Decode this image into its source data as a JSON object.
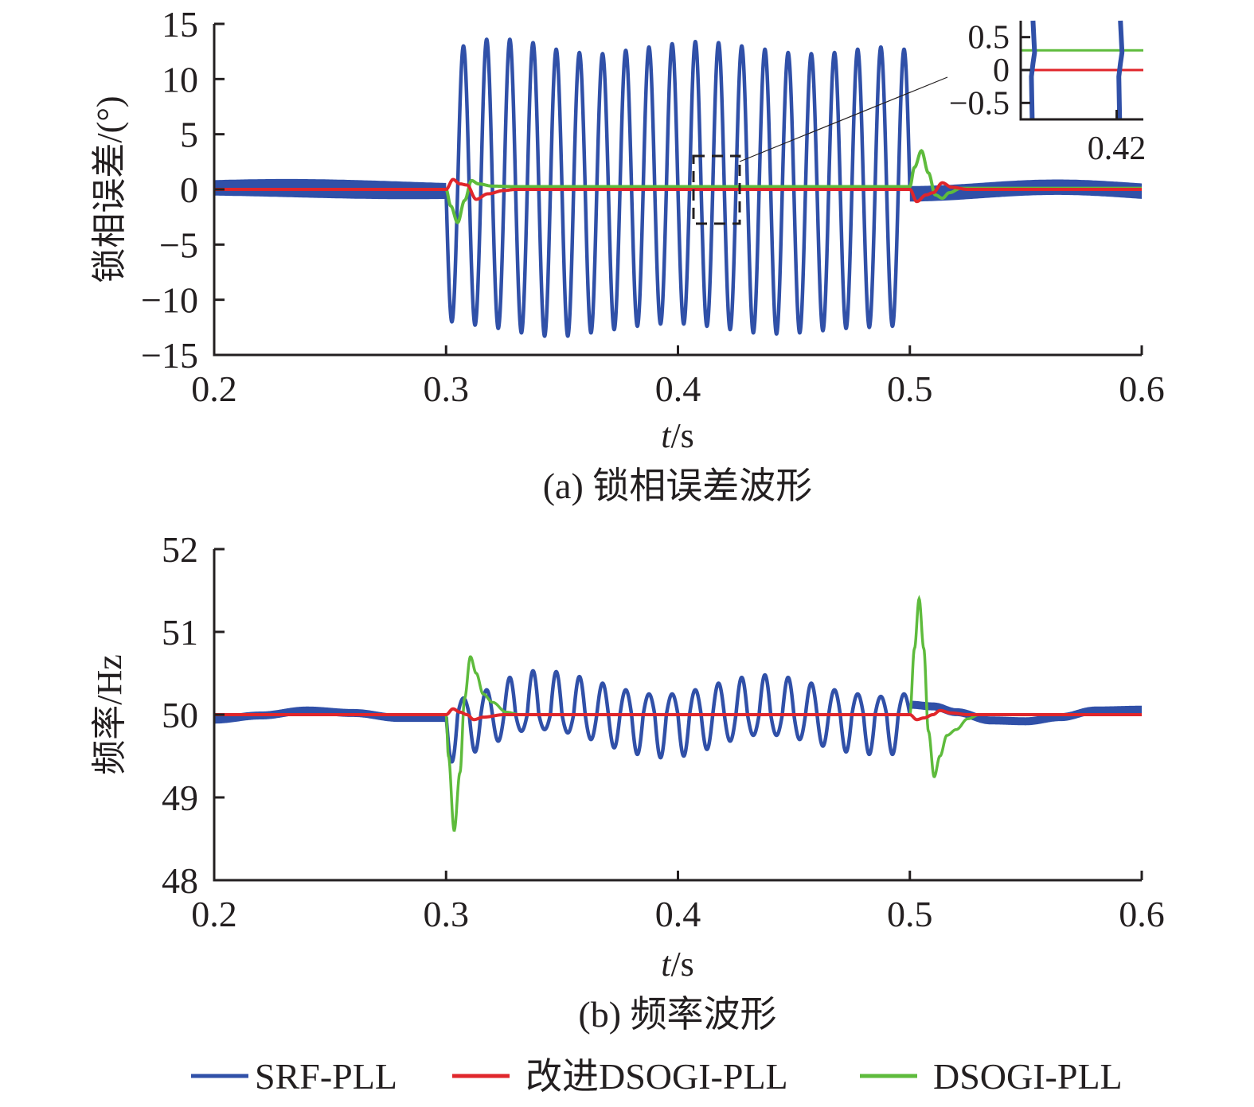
{
  "chart_data": [
    {
      "id": "a",
      "type": "line",
      "caption": "(a) 锁相误差波形",
      "xlabel_italic": "t",
      "xlabel_unit": "/s",
      "ylabel": "锁相误差/(°)",
      "xlim": [
        0.2,
        0.6
      ],
      "ylim": [
        -15,
        15
      ],
      "xticks": [
        0.2,
        0.3,
        0.4,
        0.5,
        0.6
      ],
      "xtick_labels": [
        "0.2",
        "0.3",
        "0.4",
        "0.5",
        "0.6"
      ],
      "yticks": [
        -15,
        -10,
        -5,
        0,
        5,
        10,
        15
      ],
      "ytick_labels": [
        "−15",
        "−10",
        "−5",
        "0",
        "5",
        "10",
        "15"
      ],
      "grid": false,
      "series": [
        {
          "name": "SRF-PLL",
          "color": "#3050a8",
          "description": "Before 0.3 s and after 0.5 s: thick band ±0.7° with slow ~25 Hz modulation; 0.3–0.5 s: 100 Hz oscillation, amplitude ≈13°",
          "pre_band_halfwidth": 0.7,
          "oscillation_freq_hz": 100,
          "oscillation_start": 0.3,
          "oscillation_end": 0.5,
          "oscillation_peaks": [
            13.0,
            13.6,
            13.6,
            13.3,
            12.7,
            12.4,
            12.3,
            12.6,
            12.9,
            13.2,
            13.4,
            13.3,
            13.0,
            12.7,
            12.4,
            12.3,
            12.4,
            12.7,
            12.9,
            12.7
          ],
          "oscillation_troughs": [
            -12.0,
            -12.3,
            -12.6,
            -13.0,
            -13.3,
            -13.3,
            -13.0,
            -12.7,
            -12.4,
            -12.2,
            -12.2,
            -12.4,
            -12.7,
            -13.0,
            -13.1,
            -13.0,
            -12.8,
            -12.6,
            -12.5,
            -12.4
          ]
        },
        {
          "name": "改进DSOGI-PLL",
          "color": "#e0262b",
          "description": "≈0 everywhere; small transients at 0.3 s and 0.5 s",
          "transient_points": [
            [
              0.3,
              0.0
            ],
            [
              0.303,
              0.9
            ],
            [
              0.306,
              0.5
            ],
            [
              0.309,
              0.4
            ],
            [
              0.313,
              -0.9
            ],
            [
              0.318,
              -0.4
            ],
            [
              0.325,
              -0.1
            ],
            [
              0.33,
              0.0
            ],
            [
              0.5,
              0.0
            ],
            [
              0.503,
              -1.1
            ],
            [
              0.507,
              -0.5
            ],
            [
              0.51,
              -0.3
            ],
            [
              0.514,
              0.6
            ],
            [
              0.518,
              0.2
            ],
            [
              0.525,
              0.0
            ]
          ]
        },
        {
          "name": "DSOGI-PLL",
          "color": "#5ebb3c",
          "description": "≈0.3° steady state; transients −3° at 0.3 s and +3.5° at 0.5 s",
          "steady_value": 0.25,
          "transient_points": [
            [
              0.3,
              0.0
            ],
            [
              0.302,
              -1.5
            ],
            [
              0.305,
              -3.0
            ],
            [
              0.308,
              -1.0
            ],
            [
              0.311,
              0.8
            ],
            [
              0.314,
              0.5
            ],
            [
              0.32,
              0.3
            ],
            [
              0.33,
              0.25
            ],
            [
              0.5,
              0.25
            ],
            [
              0.502,
              2.0
            ],
            [
              0.505,
              3.5
            ],
            [
              0.508,
              1.5
            ],
            [
              0.511,
              -0.5
            ],
            [
              0.514,
              -0.8
            ],
            [
              0.517,
              -0.3
            ],
            [
              0.522,
              0.1
            ],
            [
              0.53,
              0.1
            ]
          ]
        }
      ],
      "inset": {
        "xlim": [
          0.411,
          0.4225
        ],
        "ylim": [
          -0.75,
          0.75
        ],
        "xticks": [
          0.42
        ],
        "xtick_labels": [
          "0.42"
        ],
        "yticks": [
          -0.5,
          0,
          0.5
        ],
        "ytick_labels": [
          "−0.5",
          "0",
          "0.5"
        ],
        "series_values": {
          "DSOGI-PLL": 0.3,
          "改进DSOGI-PLL": 0.0,
          "SRF-PLL_crossings_t": [
            0.4123,
            0.4205
          ]
        },
        "zoom_box_x": [
          0.41,
          0.42
        ],
        "zoom_box_y": [
          -3.2,
          3.0
        ]
      }
    },
    {
      "id": "b",
      "type": "line",
      "caption": "(b) 频率波形",
      "xlabel_italic": "t",
      "xlabel_unit": "/s",
      "ylabel": "频率/Hz",
      "xlim": [
        0.2,
        0.6
      ],
      "ylim": [
        48,
        52
      ],
      "xticks": [
        0.2,
        0.3,
        0.4,
        0.5,
        0.6
      ],
      "xtick_labels": [
        "0.2",
        "0.3",
        "0.4",
        "0.5",
        "0.6"
      ],
      "yticks": [
        48,
        49,
        50,
        51,
        52
      ],
      "ytick_labels": [
        "48",
        "49",
        "50",
        "51",
        "52"
      ],
      "grid": false,
      "series": [
        {
          "name": "SRF-PLL",
          "color": "#3050a8",
          "description": "≈50 Hz with slow ±0.07 Hz drift outside 0.3–0.5 s; 100 Hz oscillation of ±0.3–0.5 Hz inside",
          "oscillation_peaks": [
            50.2,
            50.3,
            50.45,
            50.53,
            50.52,
            50.46,
            50.38,
            50.3,
            50.25,
            50.25,
            50.3,
            50.38,
            50.45,
            50.48,
            50.45,
            50.38,
            50.3,
            50.25,
            50.22,
            50.25
          ],
          "oscillation_troughs": [
            49.43,
            49.55,
            49.68,
            49.8,
            49.82,
            49.78,
            49.7,
            49.6,
            49.52,
            49.48,
            49.5,
            49.58,
            49.68,
            49.75,
            49.75,
            49.7,
            49.62,
            49.55,
            49.52,
            49.52
          ],
          "post_points": [
            [
              0.5,
              50.12
            ],
            [
              0.51,
              50.1
            ],
            [
              0.52,
              50.03
            ],
            [
              0.535,
              49.93
            ],
            [
              0.55,
              49.92
            ],
            [
              0.565,
              49.97
            ],
            [
              0.58,
              50.05
            ],
            [
              0.6,
              50.06
            ]
          ],
          "pre_points": [
            [
              0.2,
              49.94
            ],
            [
              0.22,
              49.99
            ],
            [
              0.24,
              50.05
            ],
            [
              0.26,
              50.02
            ],
            [
              0.28,
              49.96
            ],
            [
              0.3,
              49.96
            ]
          ]
        },
        {
          "name": "改进DSOGI-PLL",
          "color": "#e0262b",
          "description": "≈50 Hz; small transients",
          "transient_points": [
            [
              0.3,
              50.0
            ],
            [
              0.303,
              50.07
            ],
            [
              0.306,
              50.03
            ],
            [
              0.309,
              50.0
            ],
            [
              0.312,
              49.94
            ],
            [
              0.316,
              49.97
            ],
            [
              0.325,
              50.0
            ],
            [
              0.5,
              50.0
            ],
            [
              0.503,
              49.94
            ],
            [
              0.506,
              49.96
            ],
            [
              0.51,
              50.0
            ],
            [
              0.513,
              50.05
            ],
            [
              0.518,
              50.02
            ],
            [
              0.525,
              50.0
            ]
          ]
        },
        {
          "name": "DSOGI-PLL",
          "color": "#5ebb3c",
          "description": "≈50 Hz; transients min 48.6 Hz near 0.303 s, max 50.7 Hz near 0.31 s, max 51.4 Hz near 0.504 s, min 49.25 Hz near 0.511 s",
          "transient_points": [
            [
              0.3,
              50.0
            ],
            [
              0.301,
              49.5
            ],
            [
              0.3035,
              48.6
            ],
            [
              0.306,
              49.3
            ],
            [
              0.308,
              50.2
            ],
            [
              0.3105,
              50.7
            ],
            [
              0.313,
              50.5
            ],
            [
              0.316,
              50.25
            ],
            [
              0.32,
              50.15
            ],
            [
              0.326,
              50.03
            ],
            [
              0.332,
              50.0
            ],
            [
              0.5,
              50.0
            ],
            [
              0.502,
              50.8
            ],
            [
              0.504,
              51.4
            ],
            [
              0.506,
              50.8
            ],
            [
              0.508,
              49.8
            ],
            [
              0.5105,
              49.25
            ],
            [
              0.513,
              49.5
            ],
            [
              0.516,
              49.75
            ],
            [
              0.52,
              49.82
            ],
            [
              0.525,
              49.95
            ],
            [
              0.53,
              50.0
            ]
          ]
        }
      ]
    }
  ],
  "legend": {
    "placement": "bottom",
    "items": [
      {
        "label": "SRF-PLL",
        "color": "#3050a8"
      },
      {
        "label": "改进DSOGI-PLL",
        "color": "#e0262b"
      },
      {
        "label": "DSOGI-PLL",
        "color": "#5ebb3c"
      }
    ]
  }
}
